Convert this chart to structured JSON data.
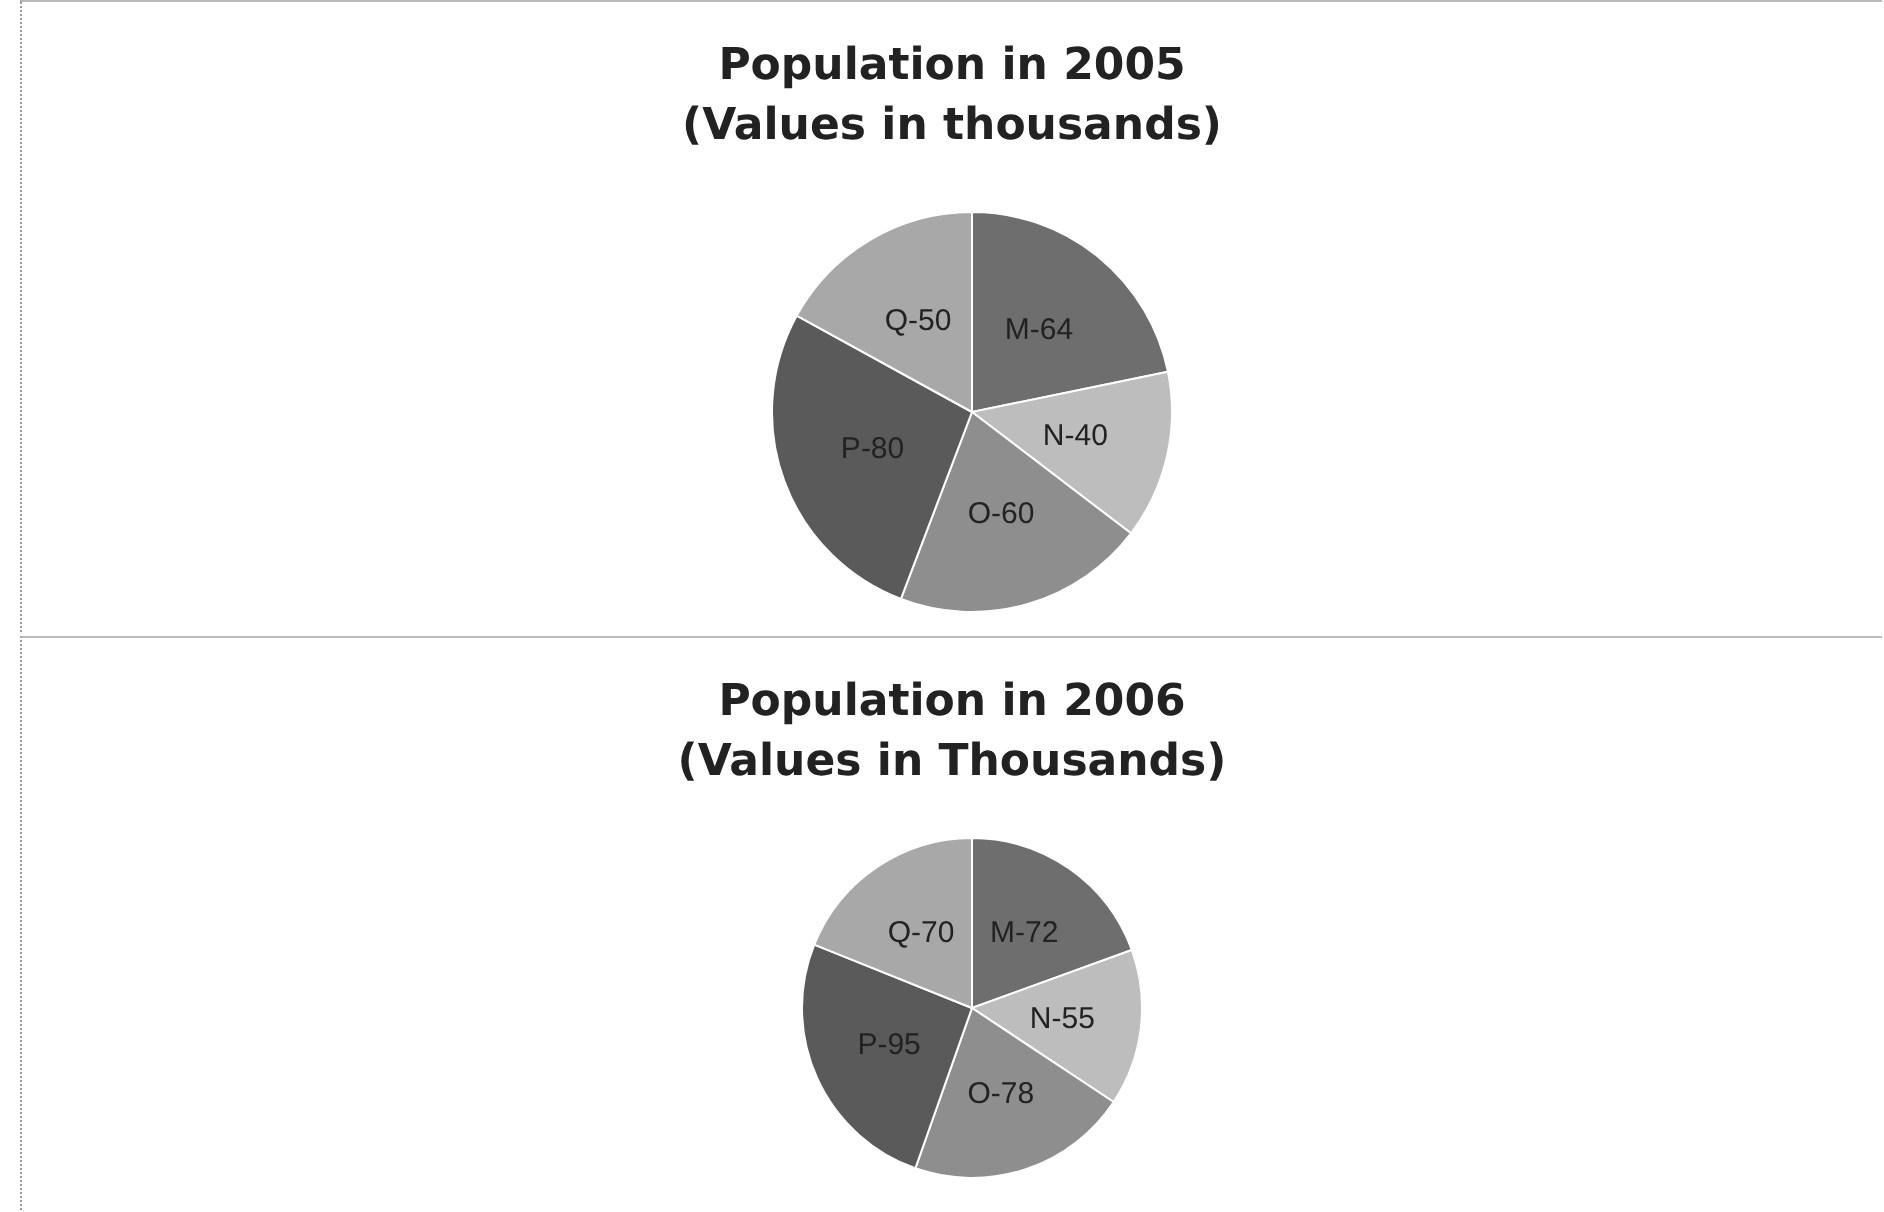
{
  "chart_data": [
    {
      "type": "pie",
      "title": "Population in 2005\n(Values in thousands)",
      "categories": [
        "M-",
        "N-",
        "O-",
        "P-",
        "Q-"
      ],
      "values": [
        64,
        40,
        60,
        80,
        50
      ],
      "data_labels": true,
      "colors": [
        "#6e6e6e",
        "#bdbdbd",
        "#8e8e8e",
        "#5a5a5a",
        "#a8a8a8"
      ]
    },
    {
      "type": "pie",
      "title": "Population in 2006\n(Values in Thousands)",
      "categories": [
        "M-",
        "N-",
        "O-",
        "P-",
        "Q-"
      ],
      "values": [
        72,
        55,
        78,
        95,
        70
      ],
      "data_labels": true,
      "colors": [
        "#6e6e6e",
        "#bdbdbd",
        "#8e8e8e",
        "#5a5a5a",
        "#a8a8a8"
      ]
    }
  ]
}
